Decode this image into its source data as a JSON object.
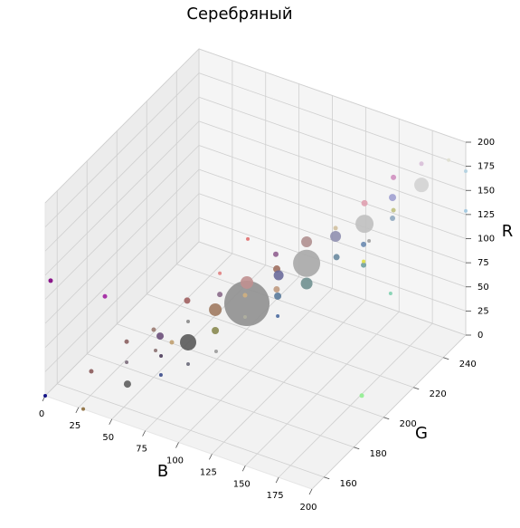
{
  "chart_data": {
    "type": "scatter3d",
    "title": "Серебряный",
    "xlabel": "B",
    "ylabel": "G",
    "zlabel": "R",
    "xlim": [
      0,
      200
    ],
    "ylim": [
      152,
      255
    ],
    "zlim": [
      0,
      200
    ],
    "xticks": [
      0,
      25,
      50,
      75,
      100,
      125,
      150,
      175,
      200
    ],
    "yticks": [
      160,
      180,
      200,
      220,
      240
    ],
    "zticks": [
      0,
      25,
      50,
      75,
      100,
      125,
      150,
      175,
      200
    ],
    "grid": true,
    "x": [
      0,
      0.7,
      28.5,
      35.8,
      20,
      40.9,
      35.3,
      52.7,
      55.6,
      54.8,
      51.4,
      49.9,
      61,
      58,
      64.6,
      59,
      70.2,
      63.9,
      79.4,
      73.8,
      80,
      77.2,
      66,
      86.3,
      80.7,
      90.5,
      90.5,
      64.6,
      103,
      97.5,
      93.3,
      103.8,
      115,
      85.6,
      108.7,
      114.3,
      97.5,
      119.2,
      125.5,
      113.6,
      140.9,
      145.8,
      151.4,
      151.4,
      135.3,
      144.3,
      194,
      194.8,
      156.3,
      161.9,
      162.6,
      151.4,
      172.4,
      166.8,
      187.2,
      200,
      200
    ],
    "y": [
      152,
      155,
      152,
      160,
      165,
      170,
      175,
      160,
      175,
      180,
      180,
      185,
      175,
      185,
      190,
      195,
      185,
      190,
      195,
      200,
      195,
      200,
      210,
      210,
      215,
      205,
      205,
      230,
      215,
      220,
      225,
      215,
      205,
      230,
      230,
      225,
      240,
      240,
      235,
      245,
      240,
      235,
      230,
      230,
      245,
      240,
      210,
      190,
      245,
      240,
      240,
      250,
      250,
      255,
      255,
      255,
      255
    ],
    "z": [
      0,
      115,
      0,
      108,
      14.9,
      48,
      16.2,
      25.2,
      59.8,
      45,
      28.4,
      14.3,
      15.5,
      32.3,
      27.8,
      38.9,
      15.7,
      70.7,
      61,
      28.9,
      18.1,
      68,
      69,
      47.6,
      58.8,
      65.8,
      43.3,
      72.9,
      62.5,
      73.2,
      56.9,
      55.9,
      56.1,
      67.2,
      69,
      58.6,
      70.4,
      86.5,
      75.8,
      84.6,
      110,
      98.8,
      87.9,
      91.7,
      121,
      94,
      110,
      35.5,
      137,
      126,
      134.6,
      147.7,
      150.1,
      161.6,
      175.3,
      128.7,
      170
    ],
    "sizes": [
      16,
      25,
      16,
      25,
      25,
      25,
      16,
      64,
      25,
      64,
      16,
      16,
      16,
      25,
      324,
      16,
      16,
      49,
      196,
      64,
      16,
      36,
      16,
      2500,
      196,
      25,
      16,
      16,
      49,
      64,
      121,
      64,
      16,
      36,
      900,
      169,
      144,
      144,
      49,
      25,
      400,
      36,
      36,
      16,
      49,
      16,
      16,
      25,
      64,
      36,
      25,
      36,
      256,
      25,
      16,
      16,
      16
    ],
    "colors": [
      "#000080",
      "#800080",
      "#8b6a3a",
      "#a020a0",
      "#8b5a5a",
      "#8b6060",
      "#7a6a7a",
      "#5f5f5f",
      "#9a7a70",
      "#6b4f7a",
      "#8a7070",
      "#4b3b5a",
      "#3b4b8a",
      "#c0a070",
      "#5a5a5a",
      "#8a8a8a",
      "#6a6a7a",
      "#a06060",
      "#a07a60",
      "#8a8a50",
      "#9a9a9a",
      "#8a6a8a",
      "#e08080",
      "#909090",
      "#c09090",
      "#d0b080",
      "#b0b0a0",
      "#e07070",
      "#c09a80",
      "#a07060",
      "#6a6a9a",
      "#5a7a9a",
      "#4a6aa0",
      "#906090",
      "#a8a8a8",
      "#709090",
      "#b09090",
      "#9090b0",
      "#6a8aa0",
      "#d0c0a0",
      "#c0c0c0",
      "#6a8ab0",
      "#70a0a0",
      "#e0e040",
      "#e0a0b0",
      "#a0a0a0",
      "#80d0b0",
      "#90ee90",
      "#a0a0d0",
      "#90a8c0",
      "#c0c080",
      "#d090c0",
      "#d3d3d3",
      "#d8bfd8",
      "#e0e0d0",
      "#a0c8e0",
      "#b0d0e0"
    ]
  }
}
